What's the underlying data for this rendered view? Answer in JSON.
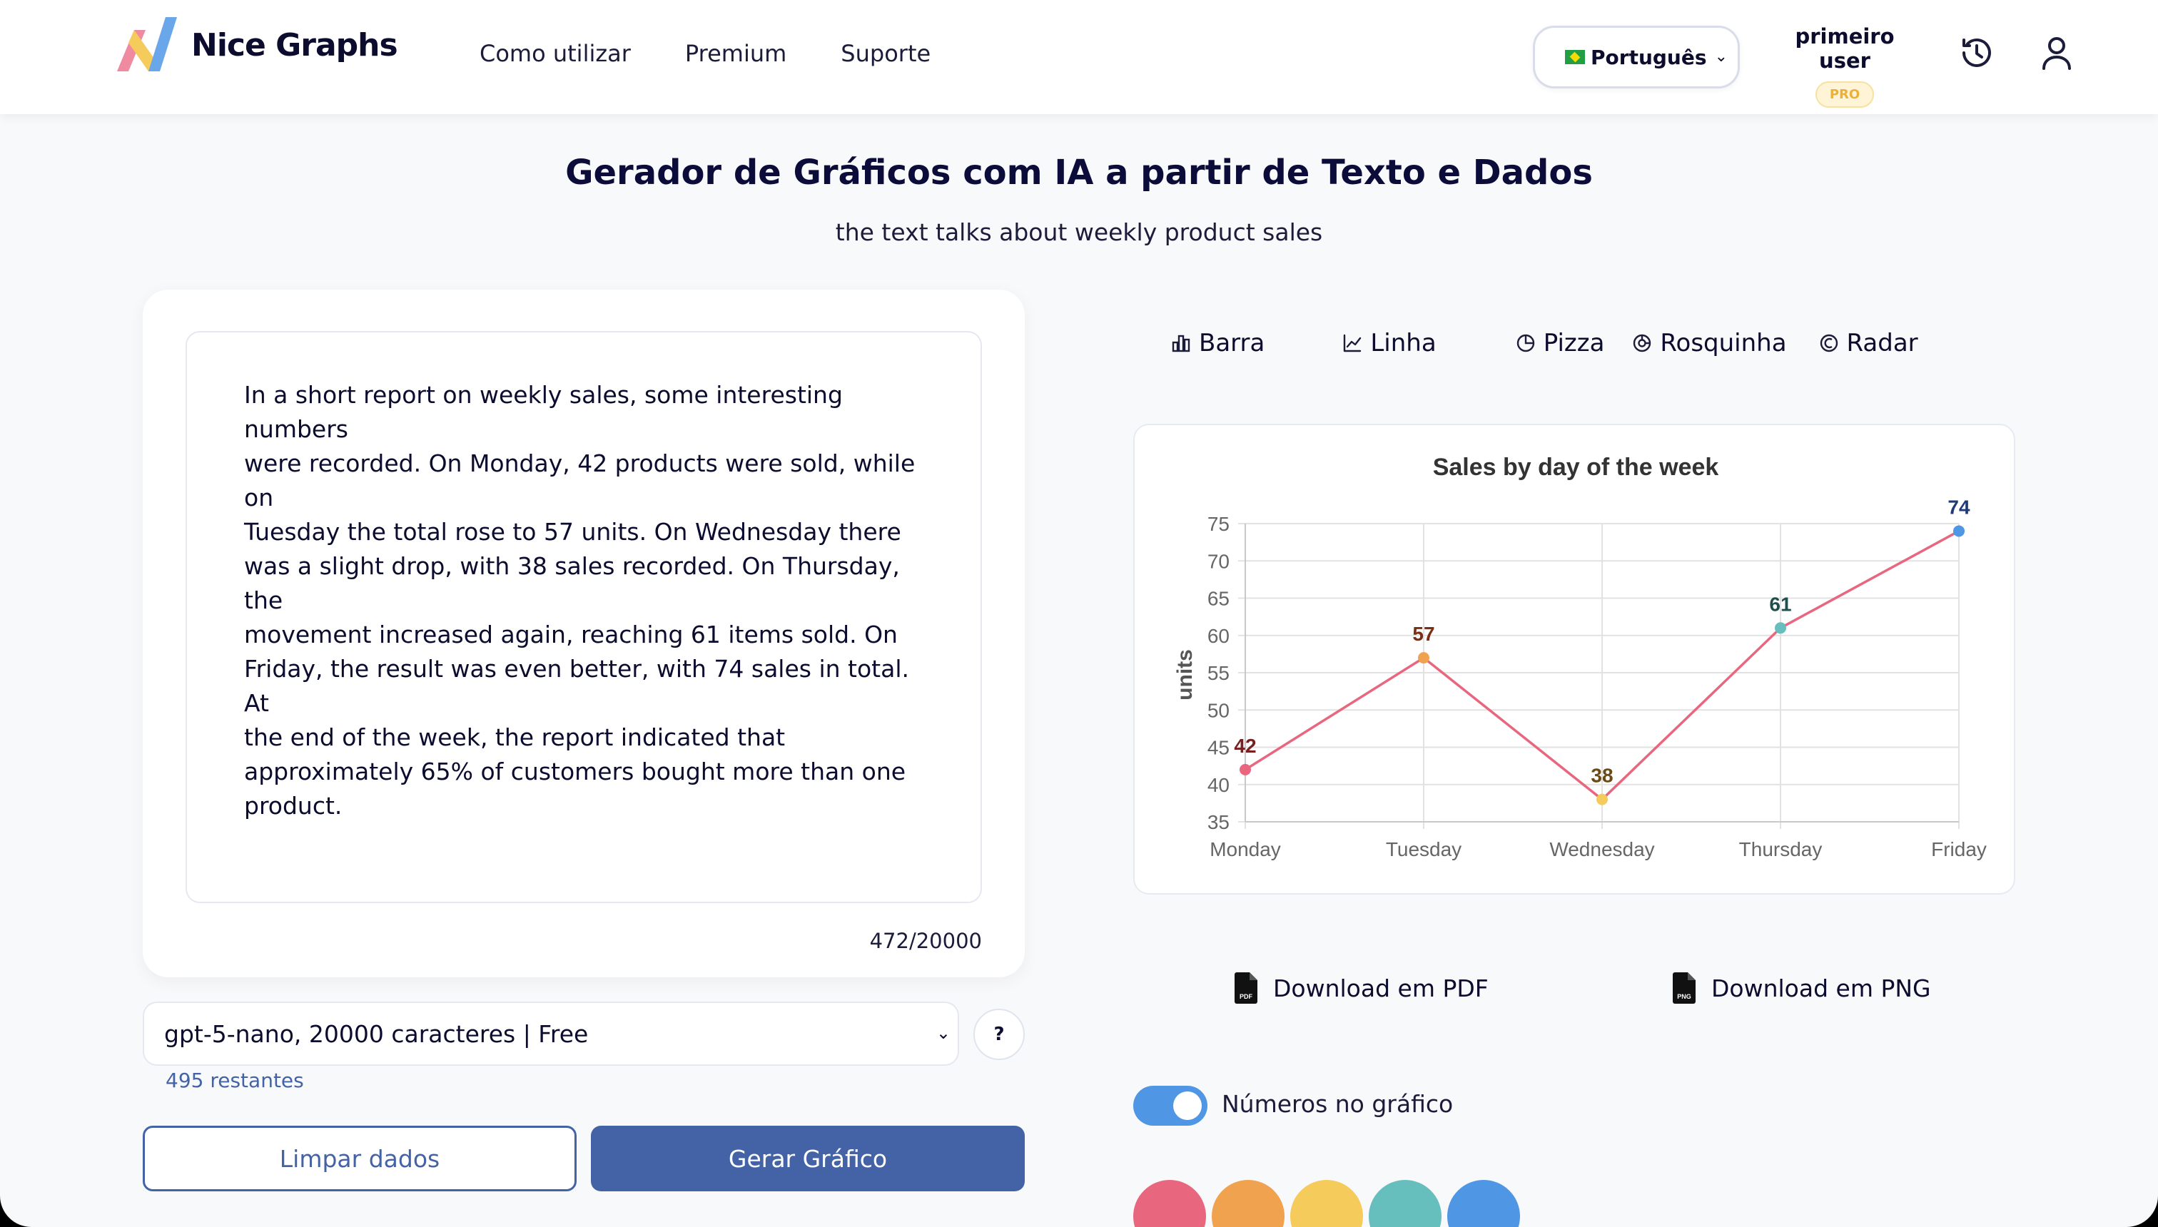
{
  "header": {
    "brand": "Nice Graphs",
    "nav": [
      "Como utilizar",
      "Premium",
      "Suporte"
    ],
    "language": "Português",
    "user_name": "primeiro user",
    "badge": "PRO"
  },
  "main": {
    "title": "Gerador de Gráficos com IA a partir de Texto e Dados",
    "subtitle": "the text talks about weekly product sales",
    "input_text": "In a short report on weekly sales, some interesting numbers\nwere recorded. On Monday, 42 products were sold, while on\nTuesday the total rose to 57 units. On Wednesday there\nwas a slight drop, with 38 sales recorded. On Thursday, the\nmovement increased again, reaching 61 items sold. On\nFriday, the result was even better, with 74 sales in total. At\nthe end of the week, the report indicated that\napproximately 65% of customers bought more than one\nproduct.",
    "char_counter": "472/20000",
    "model": "gpt-5-nano, 20000 caracteres | Free",
    "help": "?",
    "remaining": "495 restantes",
    "clear_button": "Limpar dados",
    "generate_button": "Gerar Gráfico"
  },
  "chart_tabs": [
    {
      "label": "Barra",
      "icon": "bar-chart-icon"
    },
    {
      "label": "Linha",
      "icon": "line-chart-icon"
    },
    {
      "label": "Pizza",
      "icon": "pie-chart-icon"
    },
    {
      "label": "Rosquinha",
      "icon": "donut-chart-icon"
    },
    {
      "label": "Radar",
      "icon": "radar-chart-icon"
    }
  ],
  "chart_data": {
    "type": "line",
    "title": "Sales by day of the week",
    "ylabel": "units",
    "xlabel": "",
    "categories": [
      "Monday",
      "Tuesday",
      "Wednesday",
      "Thursday",
      "Friday"
    ],
    "values": [
      42,
      57,
      38,
      61,
      74
    ],
    "ylim": [
      35,
      75
    ],
    "yticks": [
      35,
      40,
      45,
      50,
      55,
      60,
      65,
      70,
      75
    ],
    "grid": true,
    "line_color": "#e8677f",
    "point_colors": [
      "#e8677f",
      "#f0a24e",
      "#f5cb5c",
      "#66bfbd",
      "#4f96e4"
    ],
    "label_colors": [
      "#7a1f1f",
      "#7a2e13",
      "#6b4a14",
      "#1f4f4c",
      "#1f3a7a"
    ]
  },
  "downloads": {
    "pdf": "Download em PDF",
    "png": "Download em PNG",
    "pdf_icon_text": "PDF",
    "png_icon_text": "PNG"
  },
  "options": {
    "show_numbers": "Números no gráfico",
    "show_numbers_on": true
  },
  "palette": [
    "#e8677f",
    "#f0a24e",
    "#f5cb5c",
    "#66bfbd",
    "#4f96e4"
  ]
}
